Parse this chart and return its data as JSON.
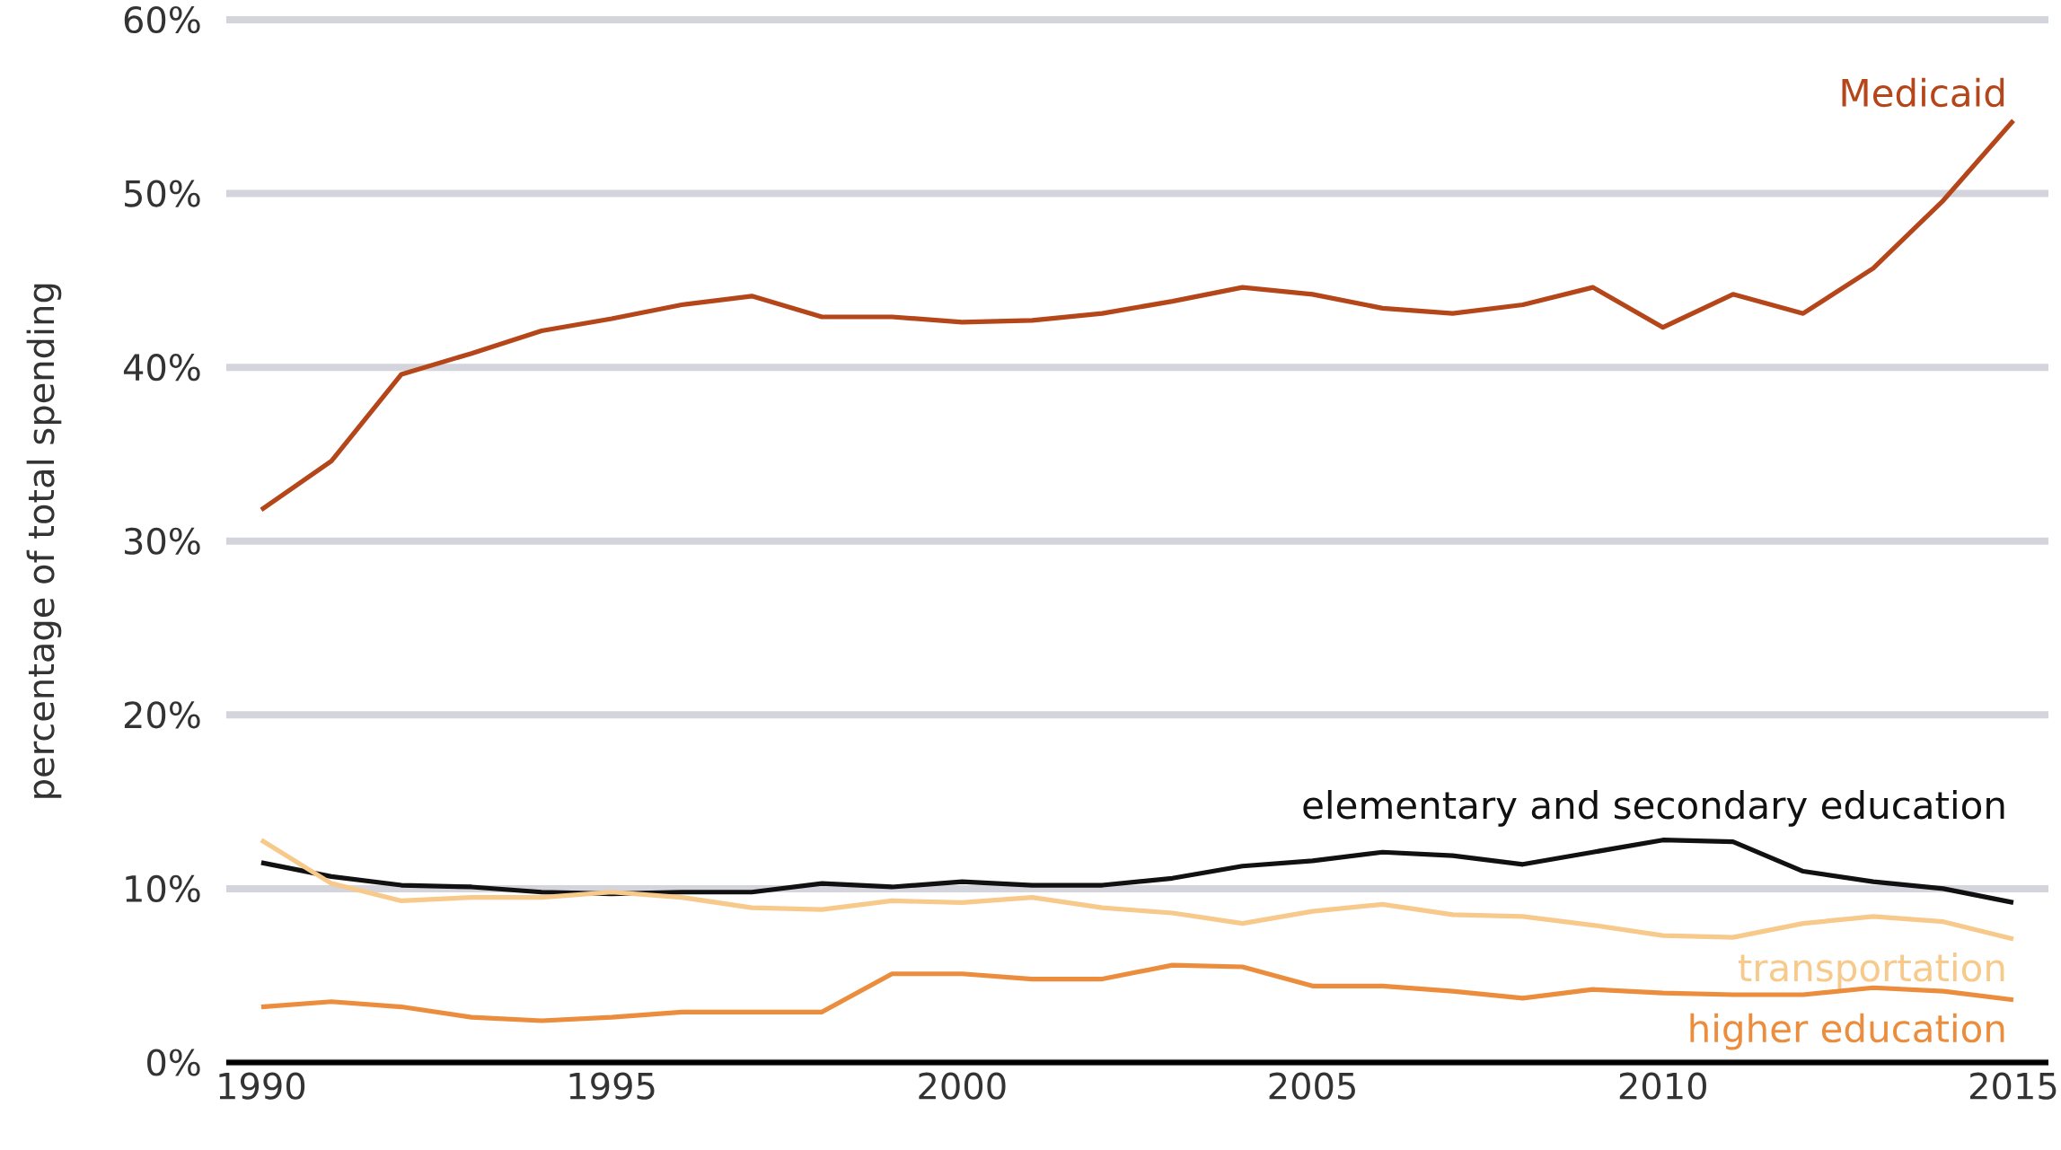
{
  "chart_data": {
    "type": "line",
    "ylabel": "percentage of total spending",
    "x": [
      1990,
      1991,
      1992,
      1993,
      1994,
      1995,
      1996,
      1997,
      1998,
      1999,
      2000,
      2001,
      2002,
      2003,
      2004,
      2005,
      2006,
      2007,
      2008,
      2009,
      2010,
      2011,
      2012,
      2013,
      2014,
      2015
    ],
    "series": [
      {
        "name": "Medicaid",
        "color": "#b5461a",
        "values": [
          31.8,
          34.6,
          39.6,
          40.8,
          42.1,
          42.8,
          43.6,
          44.1,
          42.9,
          42.9,
          42.6,
          42.7,
          43.1,
          43.8,
          44.6,
          44.2,
          43.4,
          43.1,
          43.6,
          44.6,
          42.3,
          44.2,
          43.1,
          45.7,
          49.6,
          54.2
        ]
      },
      {
        "name": "elementary and secondary education",
        "color": "#111111",
        "values": [
          11.5,
          10.7,
          10.2,
          10.1,
          9.8,
          9.7,
          9.8,
          9.8,
          10.3,
          10.1,
          10.4,
          10.2,
          10.2,
          10.6,
          11.3,
          11.6,
          12.1,
          11.9,
          11.4,
          12.1,
          12.8,
          12.7,
          11.0,
          10.4,
          10.0,
          9.2
        ]
      },
      {
        "name": "transportation",
        "color": "#f7c98b",
        "values": [
          12.8,
          10.3,
          9.3,
          9.5,
          9.5,
          9.8,
          9.5,
          8.9,
          8.8,
          9.3,
          9.2,
          9.5,
          8.9,
          8.6,
          8.0,
          8.7,
          9.1,
          8.5,
          8.4,
          7.9,
          7.3,
          7.2,
          8.0,
          8.4,
          8.1,
          7.1
        ]
      },
      {
        "name": "higher education",
        "color": "#eb8d3c",
        "values": [
          3.2,
          3.5,
          3.2,
          2.6,
          2.4,
          2.6,
          2.9,
          2.9,
          2.9,
          5.1,
          5.1,
          4.8,
          4.8,
          5.6,
          5.5,
          4.4,
          4.4,
          4.1,
          3.7,
          4.2,
          4.0,
          3.9,
          3.9,
          4.3,
          4.1,
          3.6
        ]
      }
    ],
    "xlim": [
      1989.5,
      2015.5
    ],
    "ylim": [
      0,
      60
    ],
    "xticks": [
      1990,
      1995,
      2000,
      2005,
      2010,
      2015
    ],
    "yticks": [
      {
        "value": 0,
        "label": "0%"
      },
      {
        "value": 10,
        "label": "10%"
      },
      {
        "value": 20,
        "label": "20%"
      },
      {
        "value": 30,
        "label": "30%"
      },
      {
        "value": 40,
        "label": "40%"
      },
      {
        "value": 50,
        "label": "50%"
      },
      {
        "value": 60,
        "label": "60%"
      }
    ],
    "grid": "y",
    "legend": false,
    "marker": "none",
    "line_style": "solid"
  }
}
